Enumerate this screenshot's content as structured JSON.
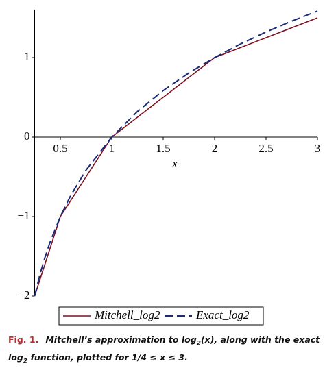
{
  "chart_data": {
    "type": "line",
    "x_label": "x",
    "x": [
      0.25,
      0.3,
      0.35,
      0.4,
      0.5,
      0.6,
      0.75,
      1,
      1.25,
      1.5,
      1.75,
      2,
      2.25,
      2.5,
      2.75,
      3
    ],
    "series": [
      {
        "name": "Mitchell_log2",
        "color": "#7a1020",
        "dashed": false,
        "values": [
          -2,
          -1.8,
          -1.6,
          -1.4,
          -1,
          -0.8,
          -0.5,
          0,
          0.25,
          0.5,
          0.75,
          1,
          1.125,
          1.25,
          1.375,
          1.5
        ]
      },
      {
        "name": "Exact_log2",
        "color": "#1a2a7a",
        "dashed": true,
        "values": [
          -2,
          -1.737,
          -1.515,
          -1.322,
          -1,
          -0.737,
          -0.415,
          0,
          0.322,
          0.585,
          0.807,
          1,
          1.17,
          1.322,
          1.459,
          1.585
        ]
      }
    ],
    "xlim": [
      0.25,
      3
    ],
    "ylim": [
      -2,
      1.6
    ],
    "xticks": [
      0.5,
      1,
      1.5,
      2,
      2.5,
      3
    ],
    "yticks": [
      {
        "value": -2,
        "label": "−2"
      },
      {
        "value": -1,
        "label": "−1"
      },
      0,
      1
    ]
  },
  "caption": {
    "label": "Fig. 1.",
    "parts": [
      "Mitchell’s approximation to log",
      "2",
      "(x), along with the exact log",
      "2",
      " function, plotted for 1/4 ≤ x ≤ 3."
    ]
  }
}
